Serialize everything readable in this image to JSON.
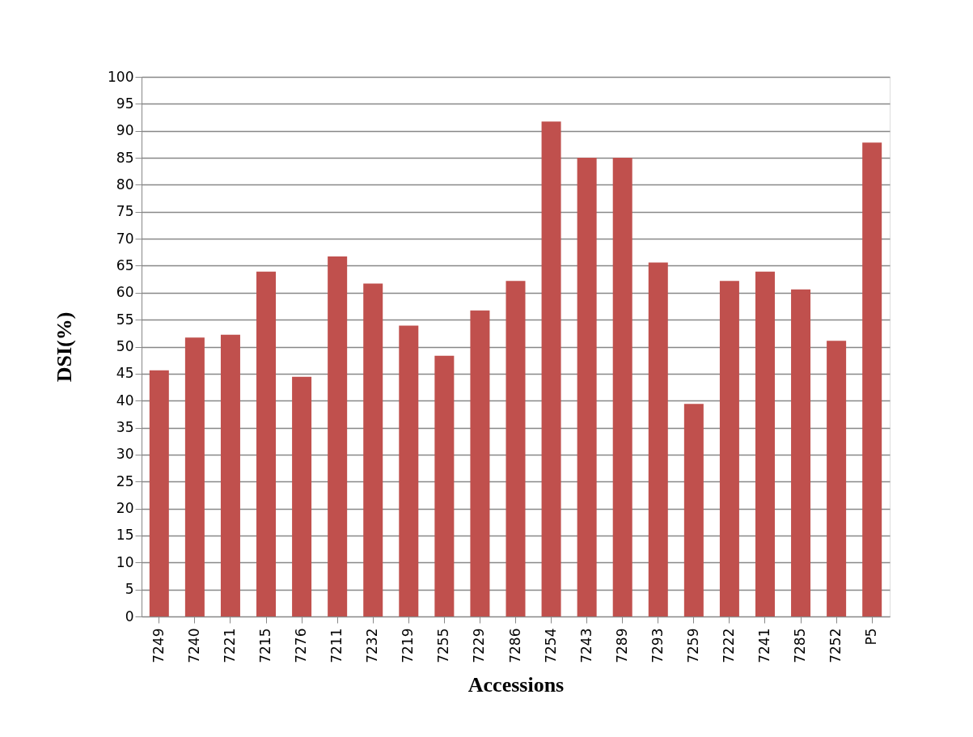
{
  "chart_data": {
    "type": "bar",
    "xlabel": "Accessions",
    "ylabel": "DSI(%)",
    "categories": [
      "7249",
      "7240",
      "7221",
      "7215",
      "7276",
      "7211",
      "7232",
      "7219",
      "7255",
      "7229",
      "7286",
      "7254",
      "7243",
      "7289",
      "7293",
      "7259",
      "7222",
      "7241",
      "7285",
      "7252",
      "P5"
    ],
    "values": [
      45.6,
      51.7,
      52.2,
      63.9,
      44.4,
      66.7,
      61.7,
      53.9,
      48.3,
      56.7,
      62.2,
      91.7,
      85,
      85,
      65.6,
      39.4,
      62.2,
      63.9,
      60.6,
      51.1,
      87.8
    ],
    "color": "#c0504d",
    "ylim": [
      0,
      100
    ],
    "yticks": [
      0,
      5,
      10,
      15,
      20,
      25,
      30,
      35,
      40,
      45,
      50,
      55,
      60,
      65,
      70,
      75,
      80,
      85,
      90,
      95,
      100
    ],
    "grid": "y"
  }
}
